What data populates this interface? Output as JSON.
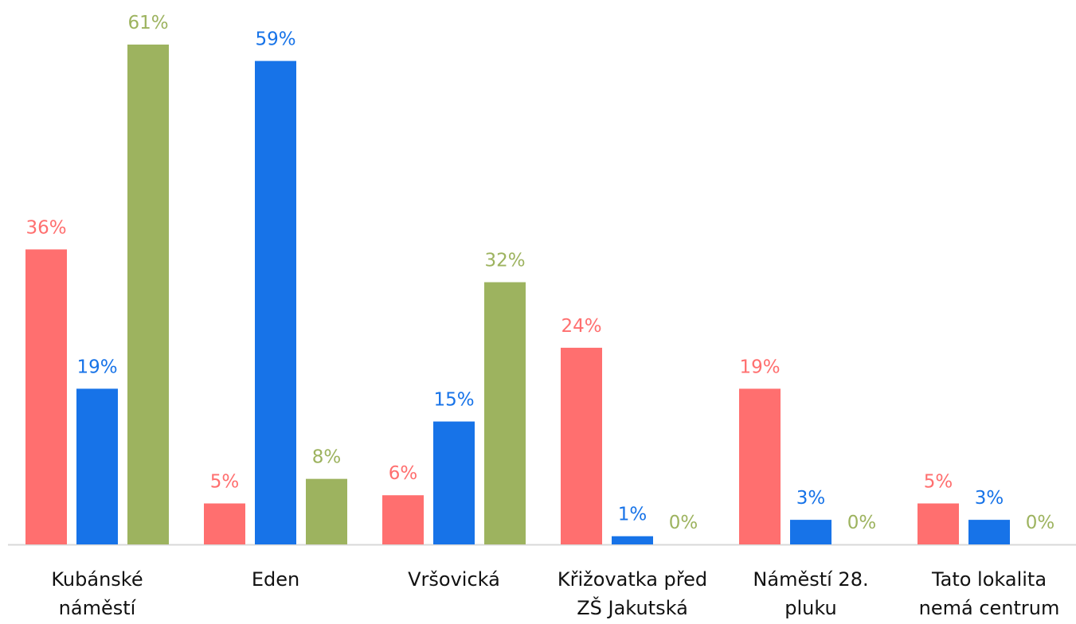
{
  "chart_data": {
    "type": "bar",
    "categories": [
      "Kubánské náměstí",
      "Eden",
      "Vršovická",
      "Křižovatka před ZŠ Jakutská",
      "Náměstí 28. pluku",
      "Tato lokalita nemá centrum"
    ],
    "series": [
      {
        "color": "#ff6f6f",
        "values": [
          36,
          5,
          6,
          24,
          19,
          5
        ],
        "value_labels": [
          "36%",
          "5%",
          "6%",
          "24%",
          "19%",
          "5%"
        ]
      },
      {
        "color": "#1773e8",
        "values": [
          19,
          59,
          15,
          1,
          3,
          3
        ],
        "value_labels": [
          "19%",
          "59%",
          "15%",
          "1%",
          "3%",
          "3%"
        ]
      },
      {
        "color": "#9db35f",
        "values": [
          61,
          8,
          32,
          0,
          0,
          0
        ],
        "value_labels": [
          "61%",
          "8%",
          "32%",
          "0%",
          "0%",
          "0%"
        ]
      }
    ]
  }
}
